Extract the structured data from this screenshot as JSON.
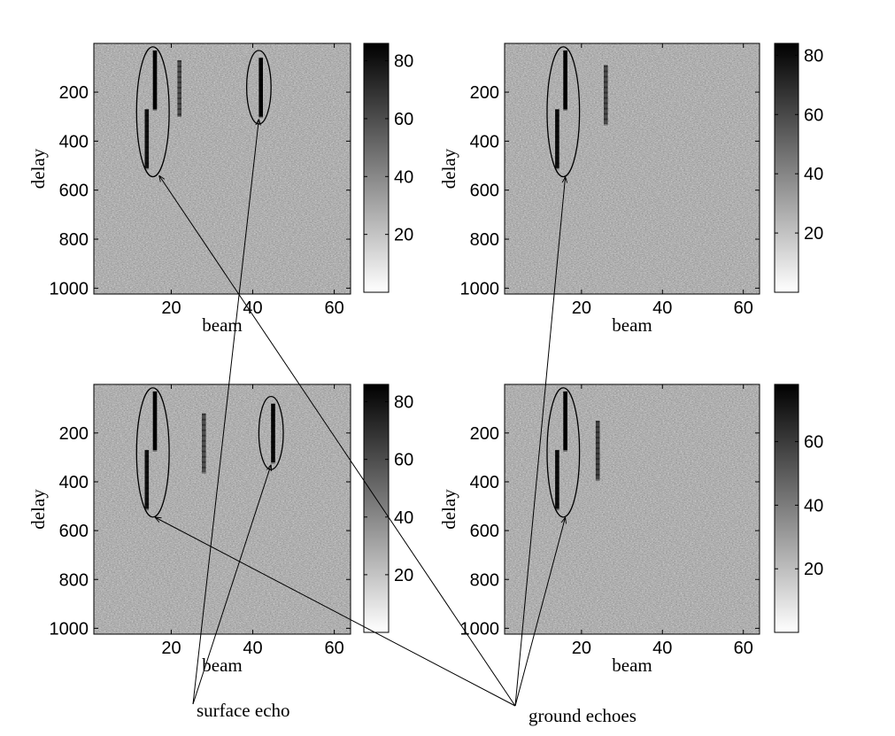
{
  "chart_data": [
    {
      "type": "heatmap",
      "title": "",
      "xlabel": "beam",
      "ylabel": "delay",
      "xlim": [
        1,
        64
      ],
      "ylim": [
        1,
        1024
      ],
      "xticks": [
        20,
        40,
        60
      ],
      "yticks": [
        200,
        400,
        600,
        800,
        1000
      ],
      "colorbar": {
        "range": [
          0,
          86
        ],
        "ticks": [
          20,
          40,
          60,
          80
        ]
      },
      "echoes": [
        {
          "beam": 16,
          "delay_start": 30,
          "delay_end": 270,
          "intensity": 86
        },
        {
          "beam": 14,
          "delay_start": 270,
          "delay_end": 510,
          "intensity": 80
        },
        {
          "beam": 22,
          "delay_start": 70,
          "delay_end": 300,
          "intensity": 60
        },
        {
          "beam": 42,
          "delay_start": 60,
          "delay_end": 300,
          "intensity": 84
        }
      ],
      "ellipses": [
        {
          "beam_center": 15.5,
          "delay_center": 280,
          "beam_radius": 4,
          "delay_radius": 265
        },
        {
          "beam_center": 41.5,
          "delay_center": 180,
          "beam_radius": 3,
          "delay_radius": 150
        }
      ]
    },
    {
      "type": "heatmap",
      "title": "",
      "xlabel": "beam",
      "ylabel": "delay",
      "xlim": [
        1,
        64
      ],
      "ylim": [
        1,
        1024
      ],
      "xticks": [
        20,
        40,
        60
      ],
      "yticks": [
        200,
        400,
        600,
        800,
        1000
      ],
      "colorbar": {
        "range": [
          0,
          84
        ],
        "ticks": [
          20,
          40,
          60,
          80
        ]
      },
      "echoes": [
        {
          "beam": 16,
          "delay_start": 30,
          "delay_end": 270,
          "intensity": 84
        },
        {
          "beam": 14,
          "delay_start": 270,
          "delay_end": 510,
          "intensity": 80
        },
        {
          "beam": 26,
          "delay_start": 90,
          "delay_end": 330,
          "intensity": 60
        }
      ],
      "ellipses": [
        {
          "beam_center": 15.5,
          "delay_center": 280,
          "beam_radius": 4,
          "delay_radius": 265
        }
      ]
    },
    {
      "type": "heatmap",
      "title": "",
      "xlabel": "beam",
      "ylabel": "delay",
      "xlim": [
        1,
        64
      ],
      "ylim": [
        1,
        1024
      ],
      "xticks": [
        20,
        40,
        60
      ],
      "yticks": [
        200,
        400,
        600,
        800,
        1000
      ],
      "colorbar": {
        "range": [
          0,
          86
        ],
        "ticks": [
          20,
          40,
          60,
          80
        ]
      },
      "echoes": [
        {
          "beam": 16,
          "delay_start": 30,
          "delay_end": 270,
          "intensity": 86
        },
        {
          "beam": 14,
          "delay_start": 270,
          "delay_end": 510,
          "intensity": 80
        },
        {
          "beam": 28,
          "delay_start": 120,
          "delay_end": 360,
          "intensity": 60
        },
        {
          "beam": 45,
          "delay_start": 80,
          "delay_end": 320,
          "intensity": 84
        }
      ],
      "ellipses": [
        {
          "beam_center": 15.5,
          "delay_center": 280,
          "beam_radius": 4,
          "delay_radius": 265
        },
        {
          "beam_center": 44.5,
          "delay_center": 200,
          "beam_radius": 3,
          "delay_radius": 150
        }
      ]
    },
    {
      "type": "heatmap",
      "title": "",
      "xlabel": "beam",
      "ylabel": "delay",
      "xlim": [
        1,
        64
      ],
      "ylim": [
        1,
        1024
      ],
      "xticks": [
        20,
        40,
        60
      ],
      "yticks": [
        200,
        400,
        600,
        800,
        1000
      ],
      "colorbar": {
        "range": [
          0,
          78
        ],
        "ticks": [
          20,
          40,
          60
        ]
      },
      "echoes": [
        {
          "beam": 16,
          "delay_start": 30,
          "delay_end": 270,
          "intensity": 78
        },
        {
          "beam": 14,
          "delay_start": 270,
          "delay_end": 510,
          "intensity": 74
        },
        {
          "beam": 24,
          "delay_start": 150,
          "delay_end": 390,
          "intensity": 58
        }
      ],
      "ellipses": [
        {
          "beam_center": 15.5,
          "delay_center": 280,
          "beam_radius": 4,
          "delay_radius": 265
        }
      ]
    }
  ],
  "annotations": {
    "surface_echo": "surface echo",
    "ground_echoes": "ground echoes",
    "surface_targets": [
      {
        "panel": 0,
        "beam": 41.5,
        "delay": 310
      },
      {
        "panel": 2,
        "beam": 44.5,
        "delay": 330
      }
    ],
    "ground_targets": [
      {
        "panel": 0,
        "beam": 17,
        "delay": 540
      },
      {
        "panel": 1,
        "beam": 16,
        "delay": 545
      },
      {
        "panel": 2,
        "beam": 16,
        "delay": 545
      },
      {
        "panel": 3,
        "beam": 16,
        "delay": 545
      }
    ]
  }
}
